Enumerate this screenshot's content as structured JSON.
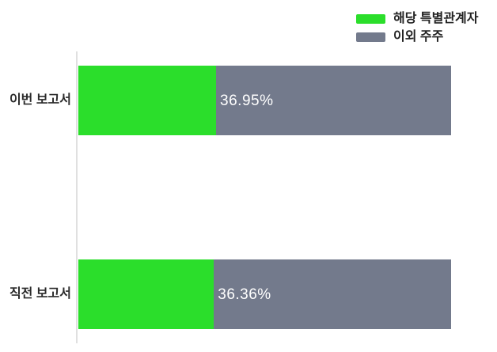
{
  "colors": {
    "series_green": "#2BDE2B",
    "series_gray": "#737A8C",
    "category_text": "#2B2B2B",
    "value_text": "#FFFFFF",
    "axis_line": "#E0E0E0",
    "background": "#FFFFFF"
  },
  "legend": {
    "items": [
      {
        "label": "해당 특별관계자",
        "color": "#2BDE2B"
      },
      {
        "label": "이외 주주",
        "color": "#737A8C"
      }
    ]
  },
  "chart_data": {
    "type": "bar",
    "orientation": "horizontal",
    "stacked": true,
    "percent_scale": true,
    "title": "",
    "xlabel": "",
    "ylabel": "",
    "xlim": [
      0,
      100
    ],
    "grid": false,
    "legend_position": "top-right",
    "categories": [
      "이번 보고서",
      "직전 보고서"
    ],
    "series": [
      {
        "name": "해당 특별관계자",
        "color": "#2BDE2B",
        "values": [
          36.95,
          36.36
        ]
      },
      {
        "name": "이외 주주",
        "color": "#737A8C",
        "values": [
          63.05,
          63.64
        ]
      }
    ],
    "value_labels": [
      "36.95%",
      "36.36%"
    ]
  },
  "bars": [
    {
      "category": "이번 보고서",
      "pct": 36.95,
      "value_label": "36.95%"
    },
    {
      "category": "직전 보고서",
      "pct": 36.36,
      "value_label": "36.36%"
    }
  ]
}
